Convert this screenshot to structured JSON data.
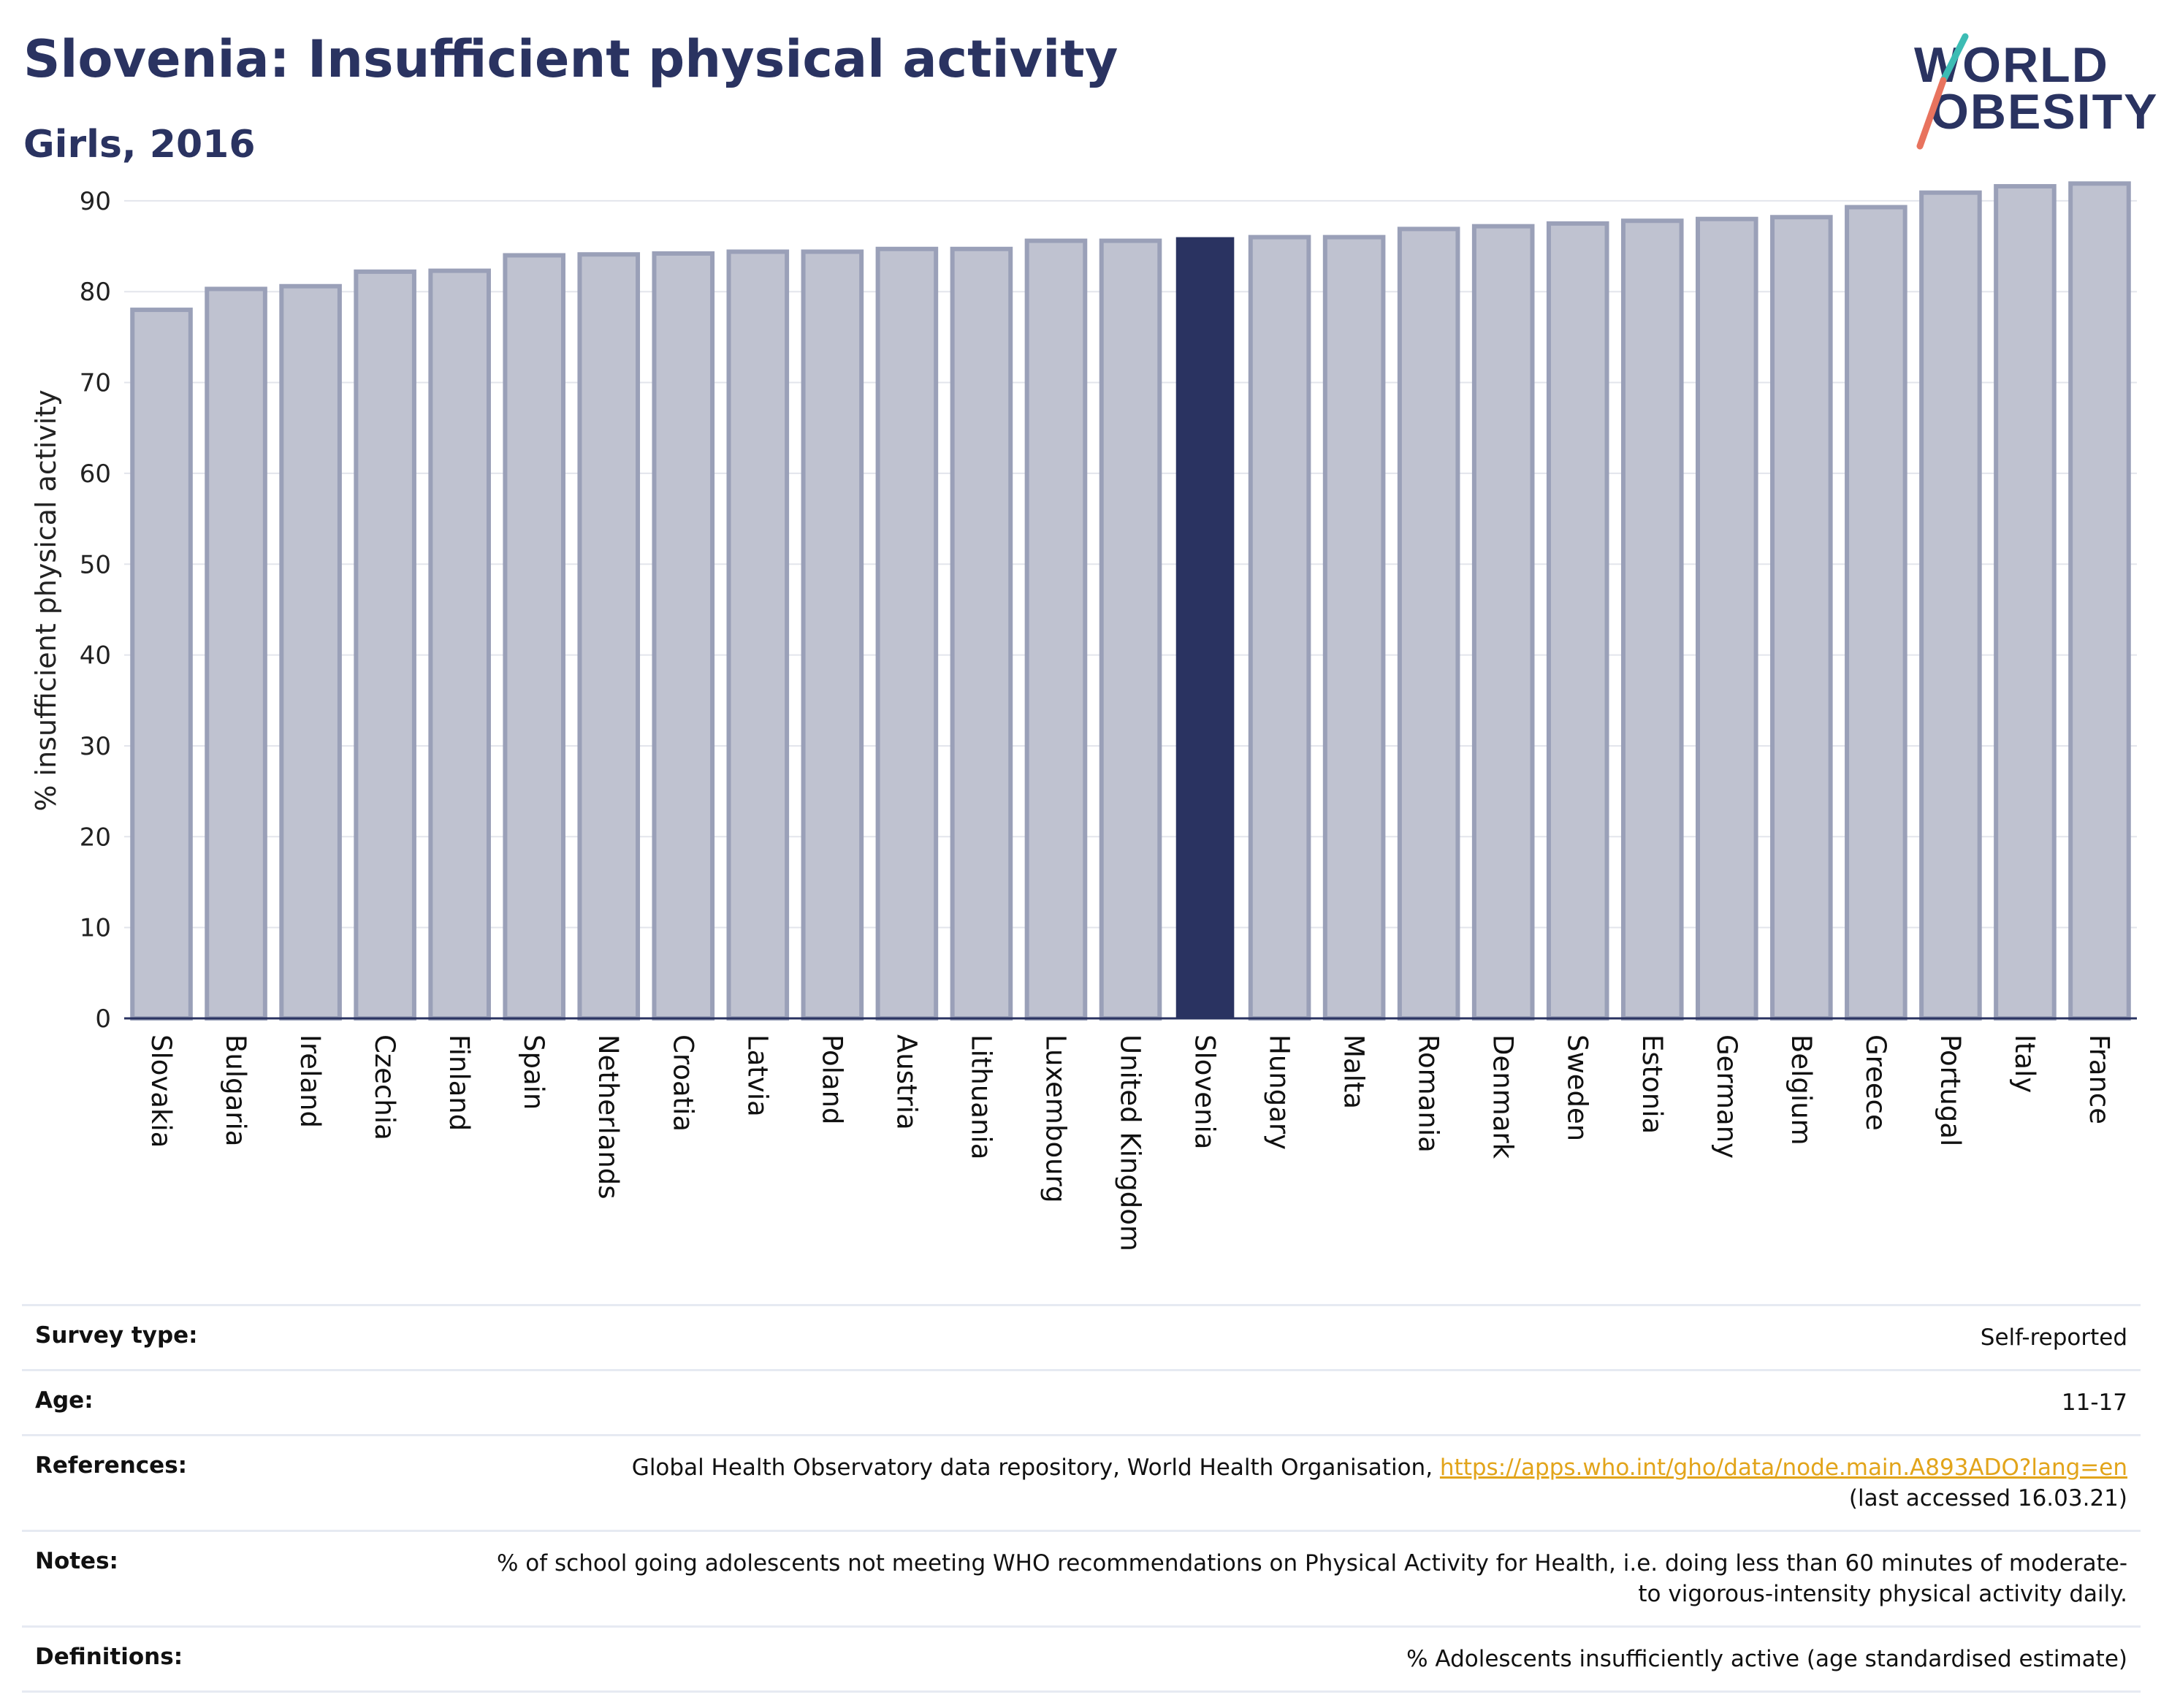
{
  "header": {
    "title": "Slovenia: Insufficient physical activity",
    "subtitle": "Girls, 2016",
    "logo_line1": "WORLD",
    "logo_line2": "OBESITY"
  },
  "colors": {
    "highlight": "#2a3361",
    "bar": "#bfc2d0",
    "bar_border": "#9aa0b8",
    "grid": "#e3e5ec",
    "logo_teal": "#3cbcb4",
    "logo_red": "#e8735e",
    "link": "#e2a41a"
  },
  "chart_data": {
    "type": "bar",
    "title": "Slovenia: Insufficient physical activity",
    "subtitle": "Girls, 2016",
    "xlabel": "",
    "ylabel": "% insufficient physical activity",
    "ylim": [
      0,
      92
    ],
    "yticks": [
      0,
      10,
      20,
      30,
      40,
      50,
      60,
      70,
      80,
      90
    ],
    "grid": true,
    "highlight": "Slovenia",
    "categories": [
      "Slovakia",
      "Bulgaria",
      "Ireland",
      "Czechia",
      "Finland",
      "Spain",
      "Netherlands",
      "Croatia",
      "Latvia",
      "Poland",
      "Austria",
      "Lithuania",
      "Luxembourg",
      "United Kingdom",
      "Slovenia",
      "Hungary",
      "Malta",
      "Romania",
      "Denmark",
      "Sweden",
      "Estonia",
      "Germany",
      "Belgium",
      "Greece",
      "Portugal",
      "Italy",
      "France"
    ],
    "values": [
      78.0,
      80.3,
      80.6,
      82.2,
      82.3,
      84.0,
      84.1,
      84.2,
      84.4,
      84.4,
      84.7,
      84.7,
      85.6,
      85.6,
      86.0,
      86.0,
      86.0,
      86.9,
      87.2,
      87.5,
      87.8,
      88.0,
      88.2,
      89.3,
      90.9,
      91.6,
      91.9
    ]
  },
  "info": {
    "survey_label": "Survey type:",
    "survey_value": "Self-reported",
    "age_label": "Age:",
    "age_value": "11-17",
    "references_label": "References:",
    "references_text": "Global Health Observatory data repository, World Health Organisation, ",
    "references_link": "https://apps.who.int/gho/data/node.main.A893ADO?lang=en",
    "references_suffix": "(last accessed 16.03.21)",
    "notes_label": "Notes:",
    "notes_value": "% of school going adolescents not meeting WHO recommendations on Physical Activity for Health, i.e. doing less than 60 minutes of moderate- to vigorous-intensity physical activity daily.",
    "definitions_label": "Definitions:",
    "definitions_value": "% Adolescents insufficiently active (age standardised estimate)"
  }
}
